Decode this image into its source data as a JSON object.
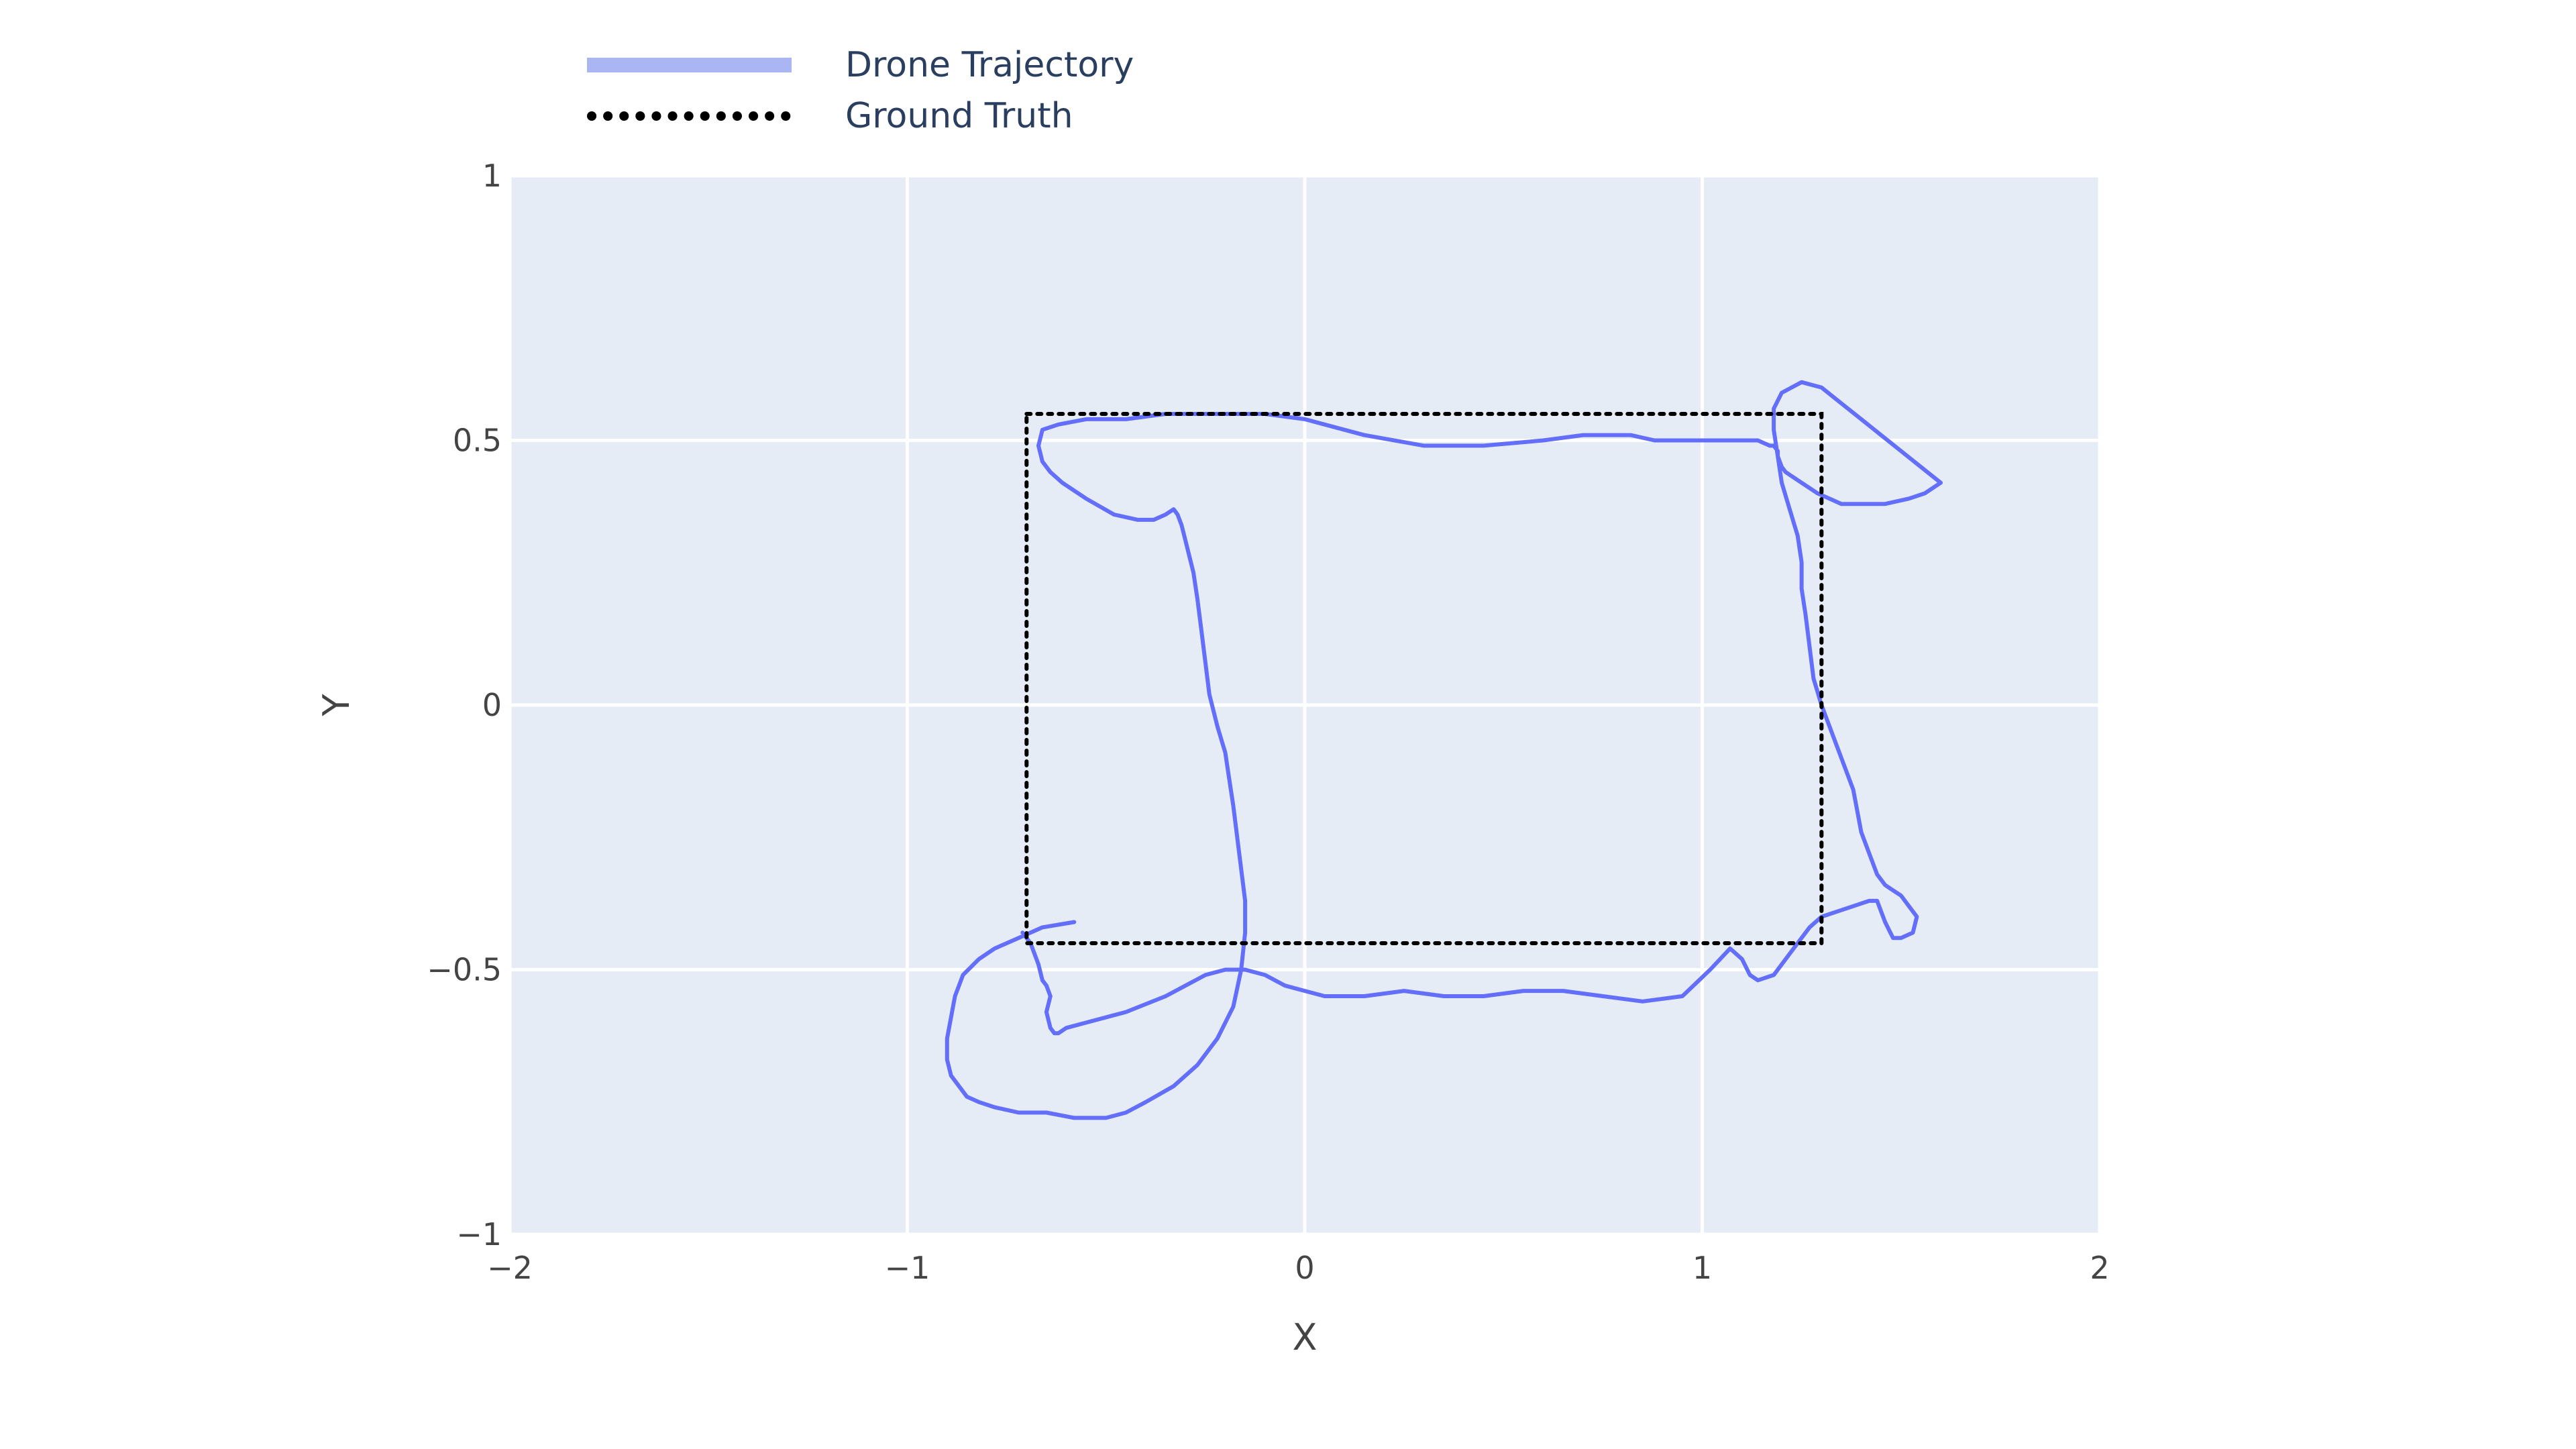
{
  "chart_data": {
    "type": "line",
    "xlabel": "X",
    "ylabel": "Y",
    "xlim": [
      -2,
      2
    ],
    "ylim": [
      -1,
      1
    ],
    "x_ticks": [
      -2,
      -1,
      0,
      1,
      2
    ],
    "y_ticks": [
      -1,
      -0.5,
      0,
      0.5,
      1
    ],
    "x_tick_labels": [
      "−2",
      "−1",
      "0",
      "1",
      "2"
    ],
    "y_tick_labels": [
      "−1",
      "−0.5",
      "0",
      "0.5",
      "1"
    ],
    "grid": true,
    "legend_position": "top-left",
    "colors": {
      "plot_background": "#e5ecf6",
      "grid": "#ffffff",
      "trajectory": "#636efa",
      "trajectory_legend": "#aab5f4",
      "ground_truth": "#000000"
    },
    "series": [
      {
        "name": "Drone Trajectory",
        "style": "solid",
        "x": [
          -0.58,
          -0.66,
          -0.72,
          -0.78,
          -0.82,
          -0.86,
          -0.88,
          -0.89,
          -0.9,
          -0.9,
          -0.89,
          -0.87,
          -0.85,
          -0.82,
          -0.78,
          -0.72,
          -0.65,
          -0.58,
          -0.5,
          -0.45,
          -0.4,
          -0.33,
          -0.27,
          -0.22,
          -0.18,
          -0.16,
          -0.15,
          -0.15,
          -0.16,
          -0.17,
          -0.18,
          -0.19,
          -0.2,
          -0.22,
          -0.24,
          -0.25,
          -0.26,
          -0.27,
          -0.28,
          -0.29,
          -0.3,
          -0.31,
          -0.32,
          -0.33,
          -0.35,
          -0.38,
          -0.42,
          -0.48,
          -0.55,
          -0.61,
          -0.64,
          -0.66,
          -0.67,
          -0.66,
          -0.62,
          -0.55,
          -0.45,
          -0.35,
          -0.22,
          -0.1,
          0.0,
          0.05,
          0.15,
          0.3,
          0.45,
          0.6,
          0.7,
          0.75,
          0.82,
          0.88,
          0.95,
          1.0,
          1.05,
          1.1,
          1.14,
          1.17,
          1.18,
          1.19,
          1.19,
          1.2,
          1.21,
          1.23,
          1.25,
          1.27,
          1.29,
          1.32,
          1.35,
          1.4,
          1.46,
          1.52,
          1.56,
          1.6,
          1.55,
          1.5,
          1.45,
          1.4,
          1.35,
          1.3,
          1.25,
          1.2,
          1.18,
          1.18,
          1.19,
          1.2,
          1.22,
          1.24,
          1.25,
          1.25,
          1.26,
          1.27,
          1.28,
          1.3,
          1.32,
          1.34,
          1.36,
          1.38,
          1.39,
          1.4,
          1.42,
          1.44,
          1.46,
          1.48,
          1.5,
          1.52,
          1.54,
          1.53,
          1.5,
          1.48,
          1.46,
          1.44,
          1.42,
          1.38,
          1.34,
          1.3,
          1.27,
          1.24,
          1.21,
          1.18,
          1.14,
          1.12,
          1.1,
          1.07,
          1.02,
          0.95,
          0.85,
          0.75,
          0.65,
          0.55,
          0.45,
          0.35,
          0.25,
          0.15,
          0.1,
          0.05,
          0.0,
          -0.05,
          -0.1,
          -0.15,
          -0.2,
          -0.25,
          -0.35,
          -0.45,
          -0.55,
          -0.6,
          -0.62,
          -0.63,
          -0.64,
          -0.65,
          -0.64,
          -0.65,
          -0.66,
          -0.67,
          -0.68,
          -0.69,
          -0.7,
          -0.71
        ],
        "y": [
          -0.41,
          -0.42,
          -0.44,
          -0.46,
          -0.48,
          -0.51,
          -0.55,
          -0.59,
          -0.63,
          -0.67,
          -0.7,
          -0.72,
          -0.74,
          -0.75,
          -0.76,
          -0.77,
          -0.77,
          -0.78,
          -0.78,
          -0.77,
          -0.75,
          -0.72,
          -0.68,
          -0.63,
          -0.57,
          -0.5,
          -0.43,
          -0.37,
          -0.31,
          -0.25,
          -0.19,
          -0.14,
          -0.09,
          -0.04,
          0.02,
          0.08,
          0.14,
          0.2,
          0.25,
          0.28,
          0.31,
          0.34,
          0.36,
          0.37,
          0.36,
          0.35,
          0.35,
          0.36,
          0.39,
          0.42,
          0.44,
          0.46,
          0.49,
          0.52,
          0.53,
          0.54,
          0.54,
          0.55,
          0.55,
          0.55,
          0.54,
          0.53,
          0.51,
          0.49,
          0.49,
          0.5,
          0.51,
          0.51,
          0.51,
          0.5,
          0.5,
          0.5,
          0.5,
          0.5,
          0.5,
          0.49,
          0.49,
          0.48,
          0.47,
          0.45,
          0.44,
          0.43,
          0.42,
          0.41,
          0.4,
          0.39,
          0.38,
          0.38,
          0.38,
          0.39,
          0.4,
          0.42,
          0.45,
          0.48,
          0.51,
          0.54,
          0.57,
          0.6,
          0.61,
          0.59,
          0.56,
          0.52,
          0.47,
          0.42,
          0.37,
          0.32,
          0.27,
          0.22,
          0.17,
          0.11,
          0.05,
          0.0,
          -0.04,
          -0.08,
          -0.12,
          -0.16,
          -0.2,
          -0.24,
          -0.28,
          -0.32,
          -0.34,
          -0.35,
          -0.36,
          -0.38,
          -0.4,
          -0.43,
          -0.44,
          -0.44,
          -0.41,
          -0.37,
          -0.37,
          -0.38,
          -0.39,
          -0.4,
          -0.42,
          -0.45,
          -0.48,
          -0.51,
          -0.52,
          -0.51,
          -0.48,
          -0.46,
          -0.5,
          -0.55,
          -0.56,
          -0.55,
          -0.54,
          -0.54,
          -0.55,
          -0.55,
          -0.54,
          -0.55,
          -0.55,
          -0.55,
          -0.54,
          -0.53,
          -0.51,
          -0.5,
          -0.5,
          -0.51,
          -0.55,
          -0.58,
          -0.6,
          -0.61,
          -0.62,
          -0.62,
          -0.61,
          -0.58,
          -0.55,
          -0.53,
          -0.52,
          -0.49,
          -0.47,
          -0.45,
          -0.44,
          -0.43
        ]
      },
      {
        "name": "Ground Truth",
        "style": "dotted",
        "x": [
          -0.7,
          1.3,
          1.3,
          -0.7,
          -0.7
        ],
        "y": [
          0.55,
          0.55,
          -0.45,
          -0.45,
          0.55
        ]
      }
    ]
  }
}
